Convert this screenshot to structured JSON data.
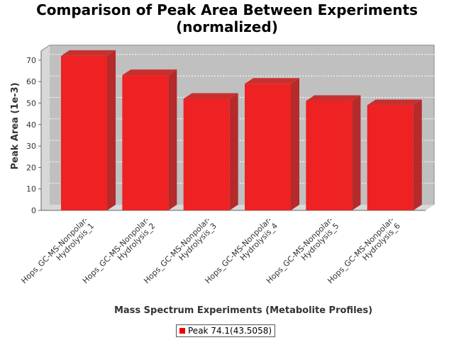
{
  "chart_data": {
    "type": "bar",
    "title": "Comparison of Peak Area Between Experiments (normalized)",
    "title_lines": [
      "Comparison of Peak Area Between Experiments",
      "(normalized)"
    ],
    "xlabel": "Mass Spectrum Experiments (Metabolite Profiles)",
    "ylabel": "Peak Area (1e-3)",
    "ylim": [
      0,
      77
    ],
    "yticks": [
      0,
      10,
      20,
      30,
      40,
      50,
      60,
      70
    ],
    "grid": true,
    "legend_position": "bottom",
    "categories": [
      [
        "Hops_GC-MS-Nonpolar-",
        "Hydrolysis_1"
      ],
      [
        "Hops_GC-MS-Nonpolar-",
        "Hydrolysis_2"
      ],
      [
        "Hops_GC-MS-Nonpolar-",
        "Hydrolysis_3"
      ],
      [
        "Hops_GC-MS-Nonpolar-",
        "Hydrolysis_4"
      ],
      [
        "Hops_GC-MS-Nonpolar-",
        "Hydrolysis_5"
      ],
      [
        "Hops_GC-MS-Nonpolar-",
        "Hydrolysis_6"
      ]
    ],
    "series": [
      {
        "name": "Peak 74.1(43.5058)",
        "values": [
          72,
          63,
          52,
          59,
          51,
          49
        ]
      }
    ],
    "colors": {
      "bar_front": "#ee2222",
      "bar_side": "#b52a2a",
      "bar_top": "#c83030",
      "plot_bg": "#c0c0c0",
      "plot_wall": "#d8d8d8",
      "legend_swatch": "#ee0000"
    }
  }
}
